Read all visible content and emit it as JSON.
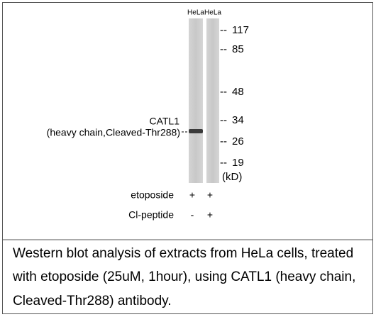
{
  "lanes": [
    "HeLa",
    "HeLa"
  ],
  "markers": [
    "117",
    "85",
    "48",
    "34",
    "26",
    "19"
  ],
  "unit": "(kD)",
  "band_label": [
    "CATL1",
    "(heavy chain,Cleaved-Thr288)"
  ],
  "treatments": [
    {
      "name": "etoposide",
      "lanes": [
        "+",
        "+"
      ]
    },
    {
      "name": "Cl-peptide",
      "lanes": [
        "-",
        "+"
      ]
    }
  ],
  "caption": [
    "Western blot analysis of extracts from HeLa cells, treated",
    "with etoposide (25uM, 1hour), using CATL1 (heavy chain,",
    "Cleaved-Thr288) antibody."
  ]
}
